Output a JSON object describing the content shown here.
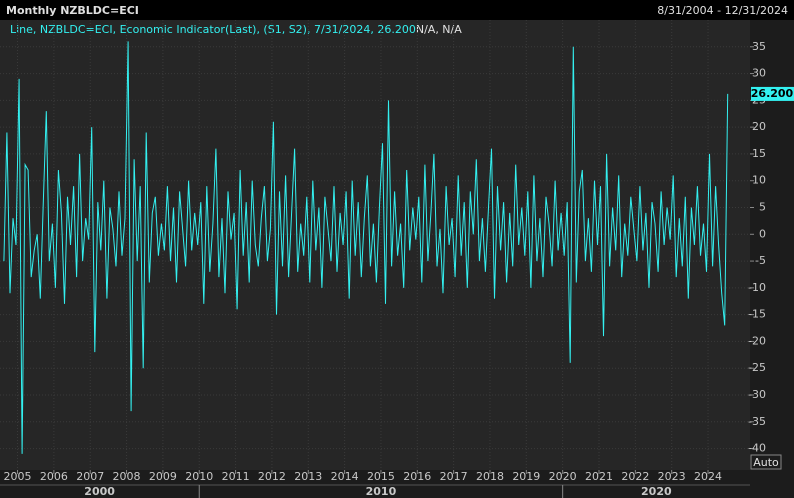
{
  "chart_data": {
    "type": "line",
    "title": "Monthly NZBLDC=ECI",
    "date_range": "8/31/2004 - 12/31/2024",
    "legend_text": "Line, NZBLDC=ECI, Economic Indicator(Last), (S1, S2), 7/31/2024, 26.200",
    "legend_extra": "N/A, N/A",
    "last_label": "26.200",
    "auto_label": "Auto",
    "color": "#33f0f0",
    "ylim": [
      -44,
      40
    ],
    "yticks": [
      35,
      30,
      25,
      20,
      15,
      10,
      5,
      0,
      -5,
      -10,
      -15,
      -20,
      -25,
      -30,
      -35,
      -40
    ],
    "xlim": [
      2004.6,
      2025.1
    ],
    "xticks": [
      2005,
      2006,
      2007,
      2008,
      2009,
      2010,
      2011,
      2012,
      2013,
      2014,
      2015,
      2016,
      2017,
      2018,
      2019,
      2020,
      2021,
      2022,
      2023,
      2024
    ],
    "decade_labels": [
      "2000",
      "2010",
      "2020"
    ],
    "series": [
      {
        "name": "NZBLDC=ECI",
        "values": [
          -5,
          19,
          -11,
          3,
          -2,
          29,
          -41,
          13,
          12,
          -8,
          -3,
          0,
          -12,
          6,
          23,
          -5,
          2,
          -10,
          12,
          4,
          -13,
          7,
          -2,
          9,
          -8,
          15,
          -5,
          3,
          -1,
          20,
          -22,
          6,
          -3,
          10,
          -12,
          5,
          1,
          -6,
          8,
          -4,
          3,
          36,
          -33,
          14,
          -5,
          9,
          -25,
          19,
          -9,
          4,
          7,
          -4,
          2,
          -3,
          9,
          -5,
          5,
          -9,
          8,
          1,
          -6,
          10,
          -3,
          4,
          -2,
          6,
          -13,
          9,
          -7,
          2,
          16,
          -8,
          3,
          -11,
          8,
          -1,
          4,
          -14,
          12,
          -4,
          6,
          -9,
          10,
          -2,
          -6,
          3,
          9,
          -5,
          1,
          21,
          -15,
          8,
          -6,
          11,
          -8,
          4,
          16,
          -7,
          2,
          -4,
          7,
          -9,
          10,
          -3,
          5,
          -10,
          7,
          1,
          -5,
          9,
          -7,
          4,
          -2,
          8,
          -12,
          10,
          -4,
          6,
          -8,
          3,
          11,
          -6,
          2,
          -9,
          5,
          17,
          -13,
          25,
          -6,
          8,
          -4,
          2,
          -10,
          12,
          -3,
          5,
          -1,
          7,
          -9,
          13,
          -5,
          4,
          15,
          -6,
          1,
          -11,
          9,
          -2,
          3,
          -8,
          11,
          -4,
          6,
          -10,
          8,
          0,
          14,
          -5,
          3,
          -7,
          5,
          16,
          -12,
          9,
          -3,
          6,
          -9,
          4,
          -6,
          13,
          -2,
          5,
          -4,
          8,
          -10,
          11,
          -5,
          3,
          -8,
          7,
          2,
          -6,
          10,
          -3,
          4,
          -4,
          6,
          -24,
          35,
          -9,
          8,
          12,
          -5,
          3,
          -7,
          10,
          -2,
          9,
          -19,
          15,
          -6,
          5,
          -3,
          11,
          -8,
          2,
          -4,
          7,
          1,
          -5,
          9,
          -3,
          4,
          -10,
          6,
          2,
          -7,
          8,
          -2,
          5,
          -1,
          11,
          -8,
          3,
          -6,
          7,
          -12,
          5,
          -2,
          9,
          -4,
          2,
          -7,
          15,
          -6,
          9,
          -2,
          -11,
          -17,
          26.2
        ]
      }
    ]
  }
}
